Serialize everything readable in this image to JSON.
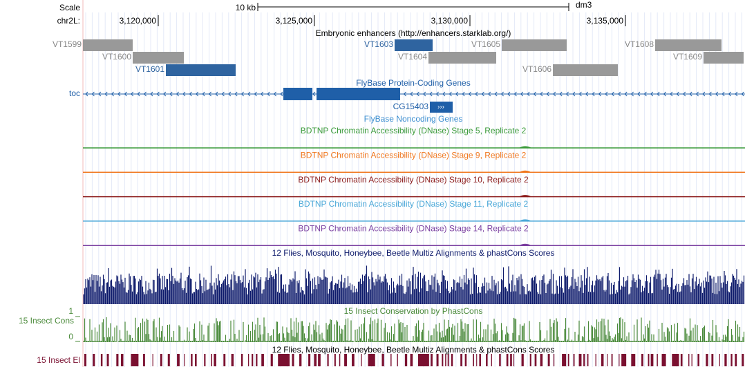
{
  "header": {
    "scale": "Scale",
    "scale_bar": "10 kb",
    "assembly": "dm3",
    "chrom": "chr2L:",
    "positions": [
      "3,120,000",
      "3,125,000",
      "3,130,000",
      "3,135,000"
    ]
  },
  "enhancers": {
    "title": "Embryonic enhancers (http://enhancers.starklab.org/)",
    "items": [
      "VT1599",
      "VT1603",
      "VT1605",
      "VT1608",
      "VT1600",
      "VT1604",
      "VT1609",
      "VT1601",
      "VT1606"
    ]
  },
  "genes": {
    "title": "FlyBase Protein-Coding Genes",
    "gene": "toc",
    "noncoding_title": "FlyBase Noncoding Genes",
    "noncoding_gene": "CG15403"
  },
  "dnase": [
    "BDTNP Chromatin Accessibility (DNase) Stage 5, Replicate 2",
    "BDTNP Chromatin Accessibility (DNase) Stage 9, Replicate 2",
    "BDTNP Chromatin Accessibility (DNase) Stage 10, Replicate 2",
    "BDTNP Chromatin Accessibility (DNase) Stage 11, Replicate 2",
    "BDTNP Chromatin Accessibility (DNase) Stage 14, Replicate 2"
  ],
  "multiz": {
    "title": "12 Flies, Mosquito, Honeybee, Beetle Multiz Alignments & phastCons Scores"
  },
  "phastcons": {
    "title": "15 Insect Conservation by PhastCons",
    "label": "15 Insect Cons",
    "max": "1",
    "min": "0"
  },
  "elements": {
    "title": "12 Flies, Mosquito, Honeybee, Beetle Multiz Alignments & phastCons Scores",
    "label": "15 Insect El"
  }
}
